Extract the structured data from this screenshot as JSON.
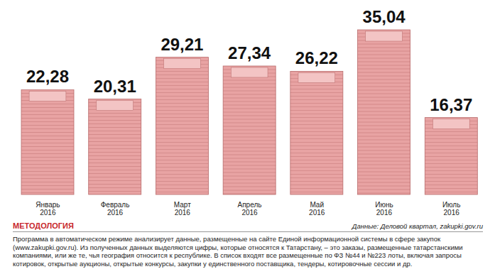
{
  "chart_data": {
    "type": "bar",
    "categories": [
      "Январь 2016",
      "Февраль 2016",
      "Март 2016",
      "Апрель 2016",
      "Май 2016",
      "Июнь 2016",
      "Июль 2016"
    ],
    "values": [
      22.28,
      20.31,
      29.21,
      27.34,
      26.22,
      35.04,
      16.37
    ],
    "value_labels": [
      "22,28",
      "20,31",
      "29,21",
      "27,34",
      "26,22",
      "35,04",
      "16,37"
    ],
    "color": "#e8a3a3",
    "data_labels": true,
    "tick_labels": "x",
    "grid": false
  },
  "methodology": {
    "title": "МЕТОДОЛОГИЯ",
    "source": "Данные: Деловой квартал, zakupki.gov.ru",
    "text": "Программа в автоматическом режиме анализирует данные, размещенные на сайте Единой информационной системы в сфере закупок (www.zakupki.gov.ru). Из полученных данных выделяются цифры, которые относятся к Татарстану, – это заказы, размещенные татарстанскими компаниями, или же те, чья география относится к республике. В список входят все размещенные по ФЗ №44 и №223 лоты, включая запросы котировок, открытые аукционы, открытые конкурсы, закупки у единственного поставщика, тендеры, котировочные сессии и др."
  }
}
